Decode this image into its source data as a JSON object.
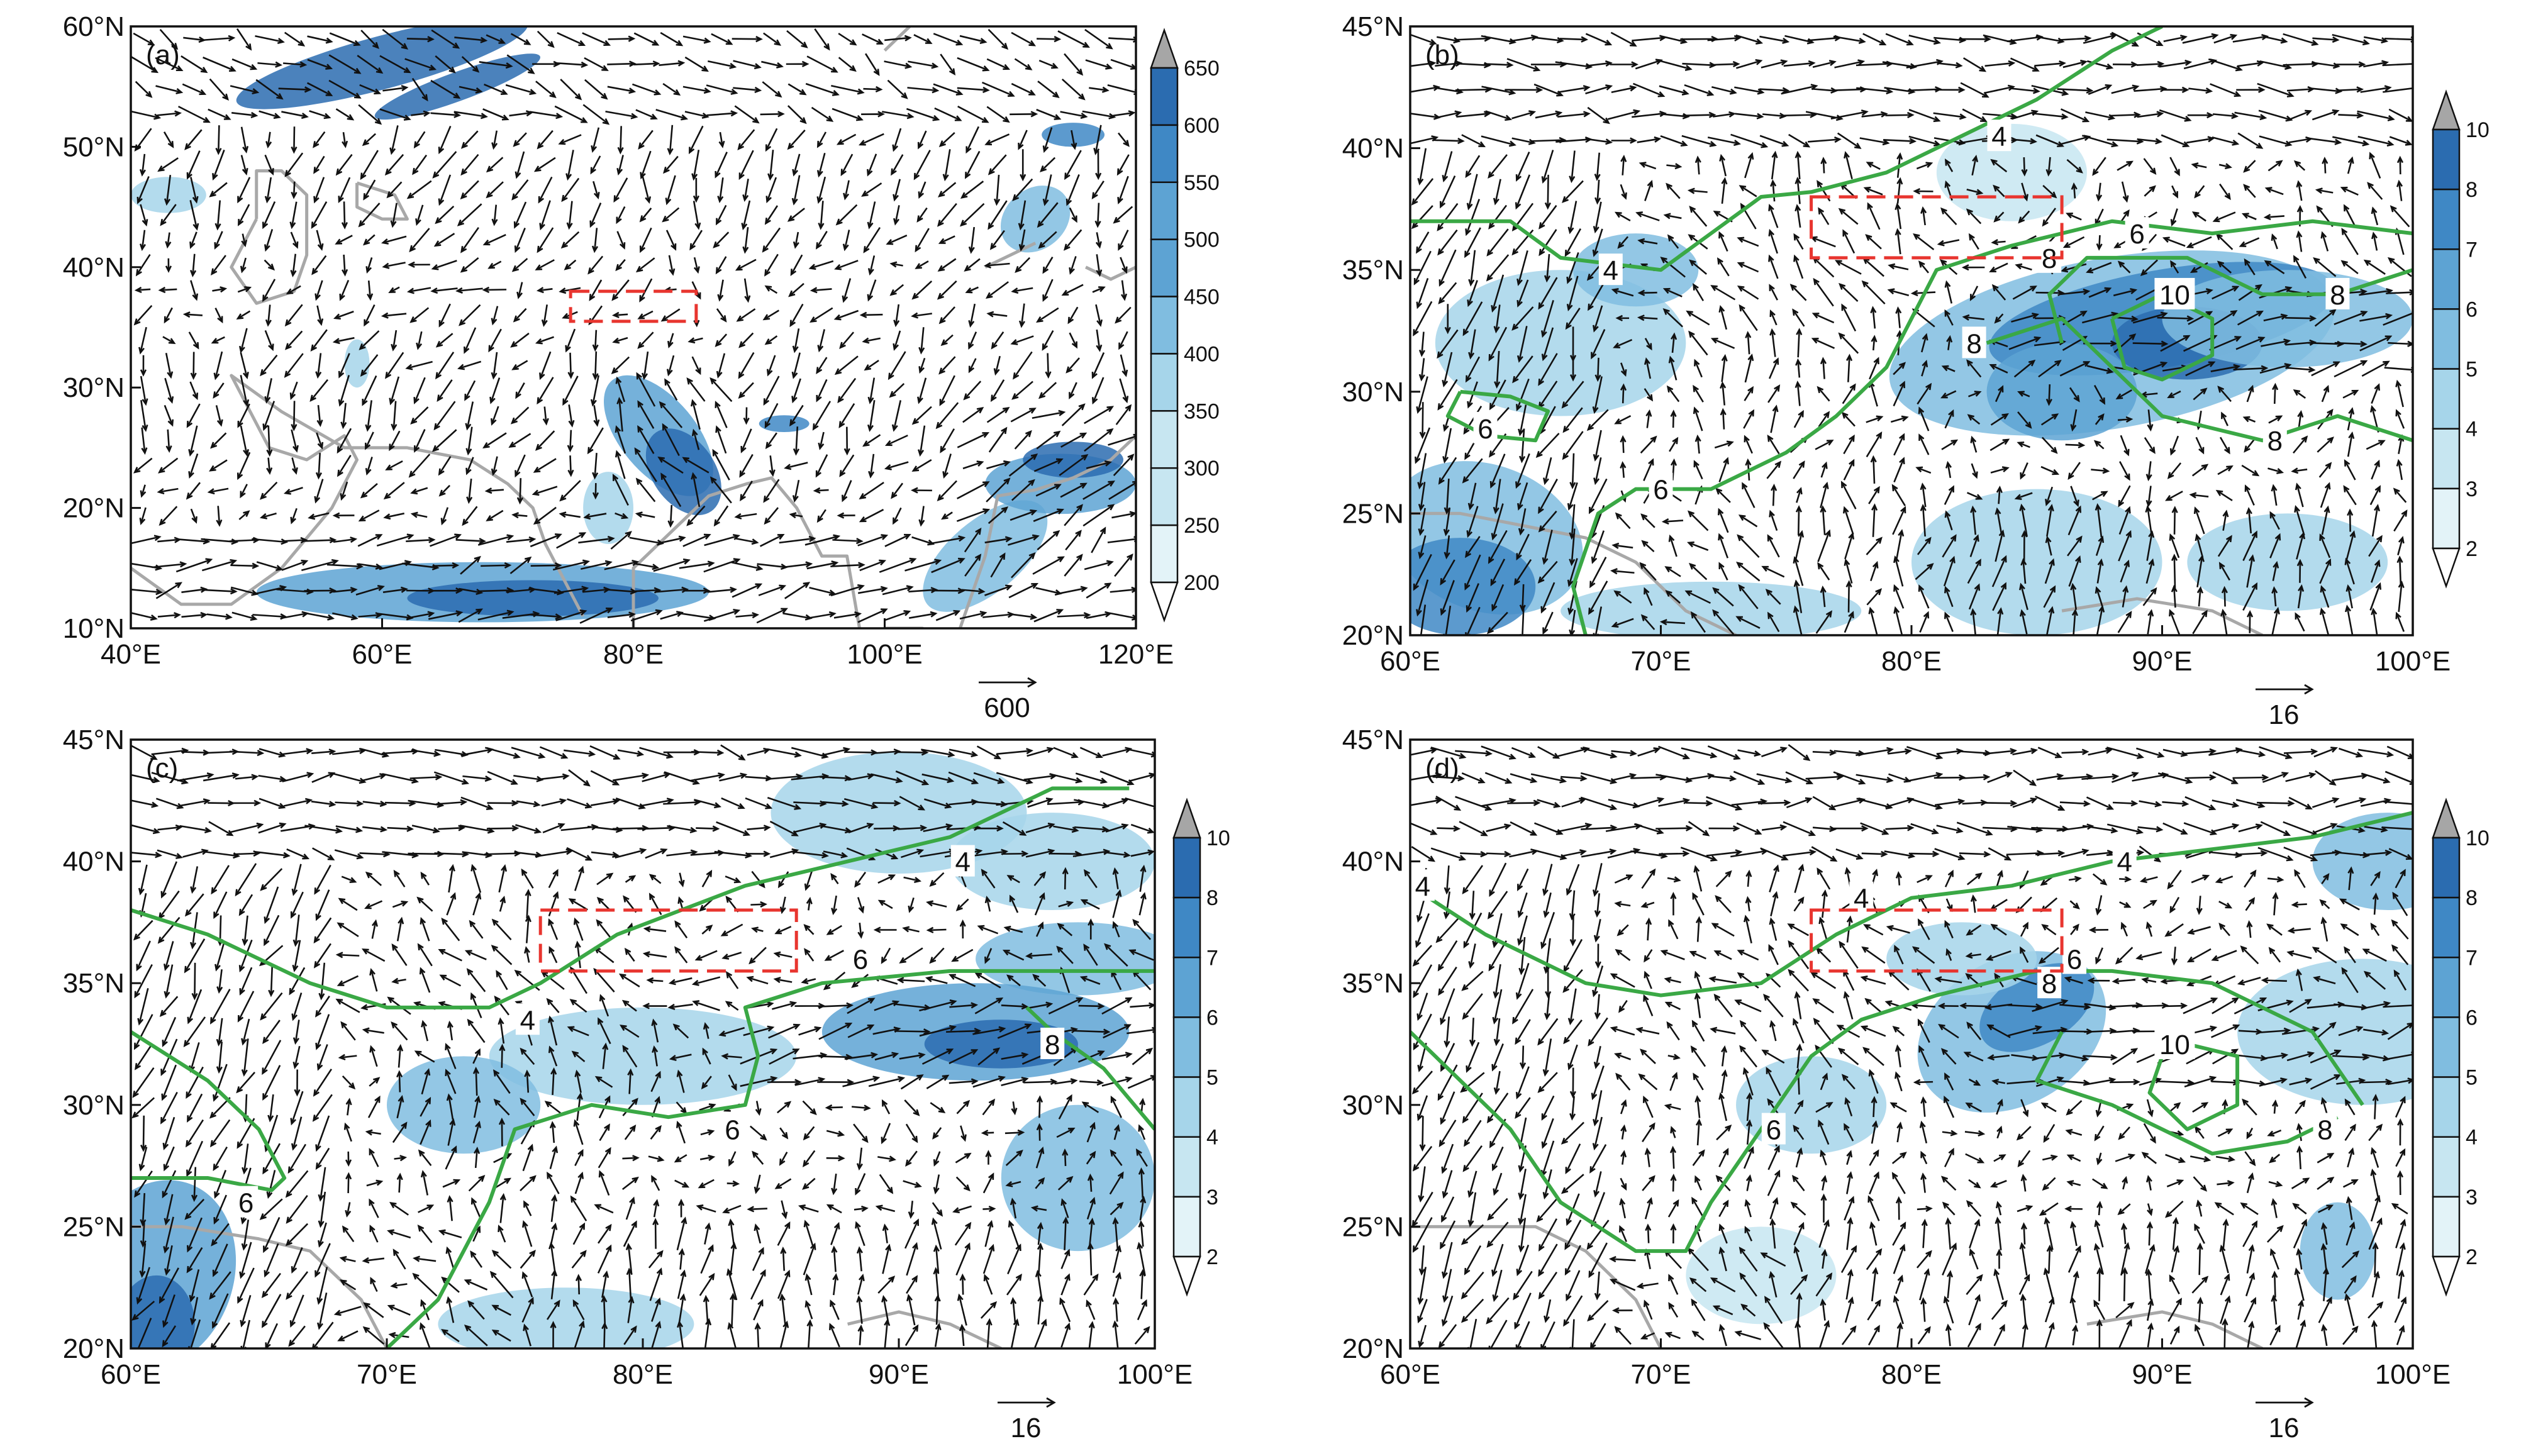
{
  "colors": {
    "shade_scale": [
      "#ffffff",
      "#e3f3f8",
      "#c7e6f1",
      "#a6d5ea",
      "#80bde0",
      "#5da3d3",
      "#3f88c5",
      "#2b6cb0"
    ],
    "over_triangle": "#a6a6a6",
    "contour": "#3aa845",
    "box": "#e8352f",
    "coast": "#a8a8a8",
    "arrow": "#111111"
  },
  "panels": [
    {
      "id": "a",
      "label": "(a)",
      "lon_range": [
        40,
        120
      ],
      "lat_range": [
        10,
        60
      ],
      "x_ticks": [
        "40°E",
        "60°E",
        "80°E",
        "100°E",
        "120°E"
      ],
      "y_ticks": [
        "10°N",
        "20°N",
        "30°N",
        "40°N",
        "50°N",
        "60°N"
      ],
      "colorbar_labels": [
        "200",
        "250",
        "300",
        "350",
        "400",
        "450",
        "500",
        "550",
        "600",
        "650"
      ],
      "ref_vector": "600",
      "box": {
        "lon": [
          75,
          85
        ],
        "lat": [
          35.5,
          38
        ]
      },
      "contours": []
    },
    {
      "id": "b",
      "label": "(b)",
      "lon_range": [
        60,
        100
      ],
      "lat_range": [
        20,
        45
      ],
      "x_ticks": [
        "60°E",
        "70°E",
        "80°E",
        "90°E",
        "100°E"
      ],
      "y_ticks": [
        "20°N",
        "25°N",
        "30°N",
        "35°N",
        "40°N",
        "45°N"
      ],
      "colorbar_labels": [
        "2",
        "3",
        "4",
        "5",
        "6",
        "7",
        "8",
        "10"
      ],
      "ref_vector": "16",
      "box": {
        "lon": [
          76,
          86
        ],
        "lat": [
          35.5,
          38
        ]
      },
      "contours": [
        {
          "label": "4",
          "label_at": [
            68,
            35
          ]
        },
        {
          "label": "4",
          "label_at": [
            83.5,
            40.5
          ]
        },
        {
          "label": "6",
          "label_at": [
            63,
            28.5
          ]
        },
        {
          "label": "6",
          "label_at": [
            70,
            26
          ]
        },
        {
          "label": "6",
          "label_at": [
            89,
            36.5
          ]
        },
        {
          "label": "8",
          "label_at": [
            85.5,
            35.5
          ]
        },
        {
          "label": "8",
          "label_at": [
            82.5,
            32
          ]
        },
        {
          "label": "8",
          "label_at": [
            97,
            34
          ]
        },
        {
          "label": "8",
          "label_at": [
            94.5,
            28
          ]
        },
        {
          "label": "10",
          "label_at": [
            90.5,
            34
          ]
        }
      ]
    },
    {
      "id": "c",
      "label": "(c)",
      "lon_range": [
        60,
        100
      ],
      "lat_range": [
        20,
        45
      ],
      "x_ticks": [
        "60°E",
        "70°E",
        "80°E",
        "90°E",
        "100°E"
      ],
      "y_ticks": [
        "20°N",
        "25°N",
        "30°N",
        "35°N",
        "40°N",
        "45°N"
      ],
      "colorbar_labels": [
        "2",
        "3",
        "4",
        "5",
        "6",
        "7",
        "8",
        "10"
      ],
      "ref_vector": "16",
      "box": {
        "lon": [
          76,
          86
        ],
        "lat": [
          35.5,
          38
        ]
      },
      "contours": [
        {
          "label": "4",
          "label_at": [
            75.5,
            33.5
          ]
        },
        {
          "label": "4",
          "label_at": [
            92.5,
            40
          ]
        },
        {
          "label": "6",
          "label_at": [
            64.5,
            26
          ]
        },
        {
          "label": "6",
          "label_at": [
            83.5,
            29
          ]
        },
        {
          "label": "6",
          "label_at": [
            88.5,
            36
          ]
        },
        {
          "label": "8",
          "label_at": [
            96,
            32.5
          ]
        }
      ]
    },
    {
      "id": "d",
      "label": "(d)",
      "lon_range": [
        60,
        100
      ],
      "lat_range": [
        20,
        45
      ],
      "x_ticks": [
        "60°E",
        "70°E",
        "80°E",
        "90°E",
        "100°E"
      ],
      "y_ticks": [
        "20°N",
        "25°N",
        "30°N",
        "35°N",
        "40°N",
        "45°N"
      ],
      "colorbar_labels": [
        "2",
        "3",
        "4",
        "5",
        "6",
        "7",
        "8",
        "10"
      ],
      "ref_vector": "16",
      "box": {
        "lon": [
          76,
          86
        ],
        "lat": [
          35.5,
          38
        ]
      },
      "contours": [
        {
          "label": "4",
          "label_at": [
            60.5,
            39
          ]
        },
        {
          "label": "4",
          "label_at": [
            78,
            38.5
          ]
        },
        {
          "label": "4",
          "label_at": [
            88.5,
            40
          ]
        },
        {
          "label": "6",
          "label_at": [
            74.5,
            29
          ]
        },
        {
          "label": "6",
          "label_at": [
            86.5,
            36
          ]
        },
        {
          "label": "8",
          "label_at": [
            85.5,
            35
          ]
        },
        {
          "label": "8",
          "label_at": [
            96.5,
            29
          ]
        },
        {
          "label": "10",
          "label_at": [
            90.5,
            32.5
          ]
        }
      ]
    }
  ]
}
